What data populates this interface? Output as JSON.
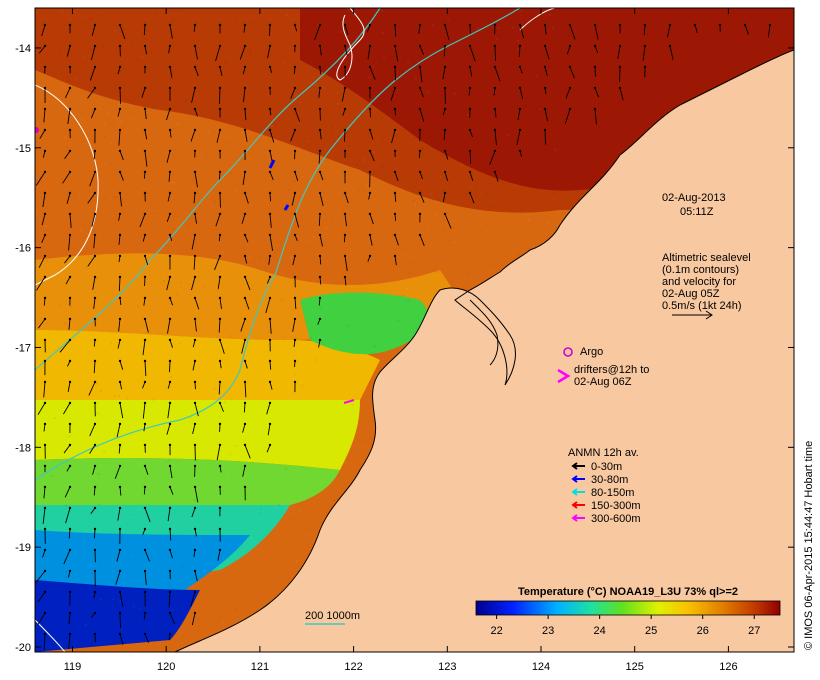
{
  "map": {
    "lon_range": [
      118.6,
      126.7
    ],
    "lat_range": [
      -20.05,
      -13.6
    ],
    "lon_ticks": [
      119,
      120,
      121,
      122,
      123,
      124,
      125,
      126
    ],
    "lat_ticks": [
      -14,
      -15,
      -16,
      -17,
      -18,
      -19,
      -20
    ],
    "lon_labels": [
      "119",
      "120",
      "121",
      "122",
      "123",
      "124",
      "125",
      "126"
    ],
    "lat_labels": [
      "-14",
      "-15",
      "-16",
      "-17",
      "-18",
      "-19",
      "-20"
    ]
  },
  "header": {
    "date": "02-Aug-2013",
    "time": "05:11Z"
  },
  "sealevel_note": {
    "line1": "Altimetric sealevel",
    "line2": "(0.1m contours)",
    "line3": "and velocity for",
    "line4": "02-Aug 05Z",
    "line5": "0.5m/s (1kt 24h)"
  },
  "argo": {
    "label": "Argo",
    "color": "#d000d0"
  },
  "drifters": {
    "line1": "drifters@12h to",
    "line2": "02-Aug 06Z",
    "color": "#ff00ff"
  },
  "anmn": {
    "title": "ANMN 12h av.",
    "items": [
      {
        "label": "0-30m",
        "color": "#000000"
      },
      {
        "label": "30-80m",
        "color": "#0000ff"
      },
      {
        "label": "80-150m",
        "color": "#00e0e0"
      },
      {
        "label": "150-300m",
        "color": "#ff0000"
      },
      {
        "label": "300-600m",
        "color": "#ff00ff"
      }
    ]
  },
  "bathy_legend": {
    "label": "200  1000m",
    "color": "#40c8c0"
  },
  "colorbar": {
    "title": "Temperature (°C) NOAA19_L3U 73% ql>=2",
    "min": 21.6,
    "max": 27.5,
    "ticks": [
      "22",
      "23",
      "24",
      "25",
      "26",
      "27"
    ],
    "tick_values": [
      22,
      23,
      24,
      25,
      26,
      27
    ]
  },
  "credit": "© IMOS 06-Apr-2015 15:44:47 Hobart time",
  "colors": {
    "land": "#f8c8a0",
    "frame": "#000000",
    "velocity": "#000000",
    "isobath": "#40c8c0",
    "ssh_contour": "#ffffff"
  }
}
